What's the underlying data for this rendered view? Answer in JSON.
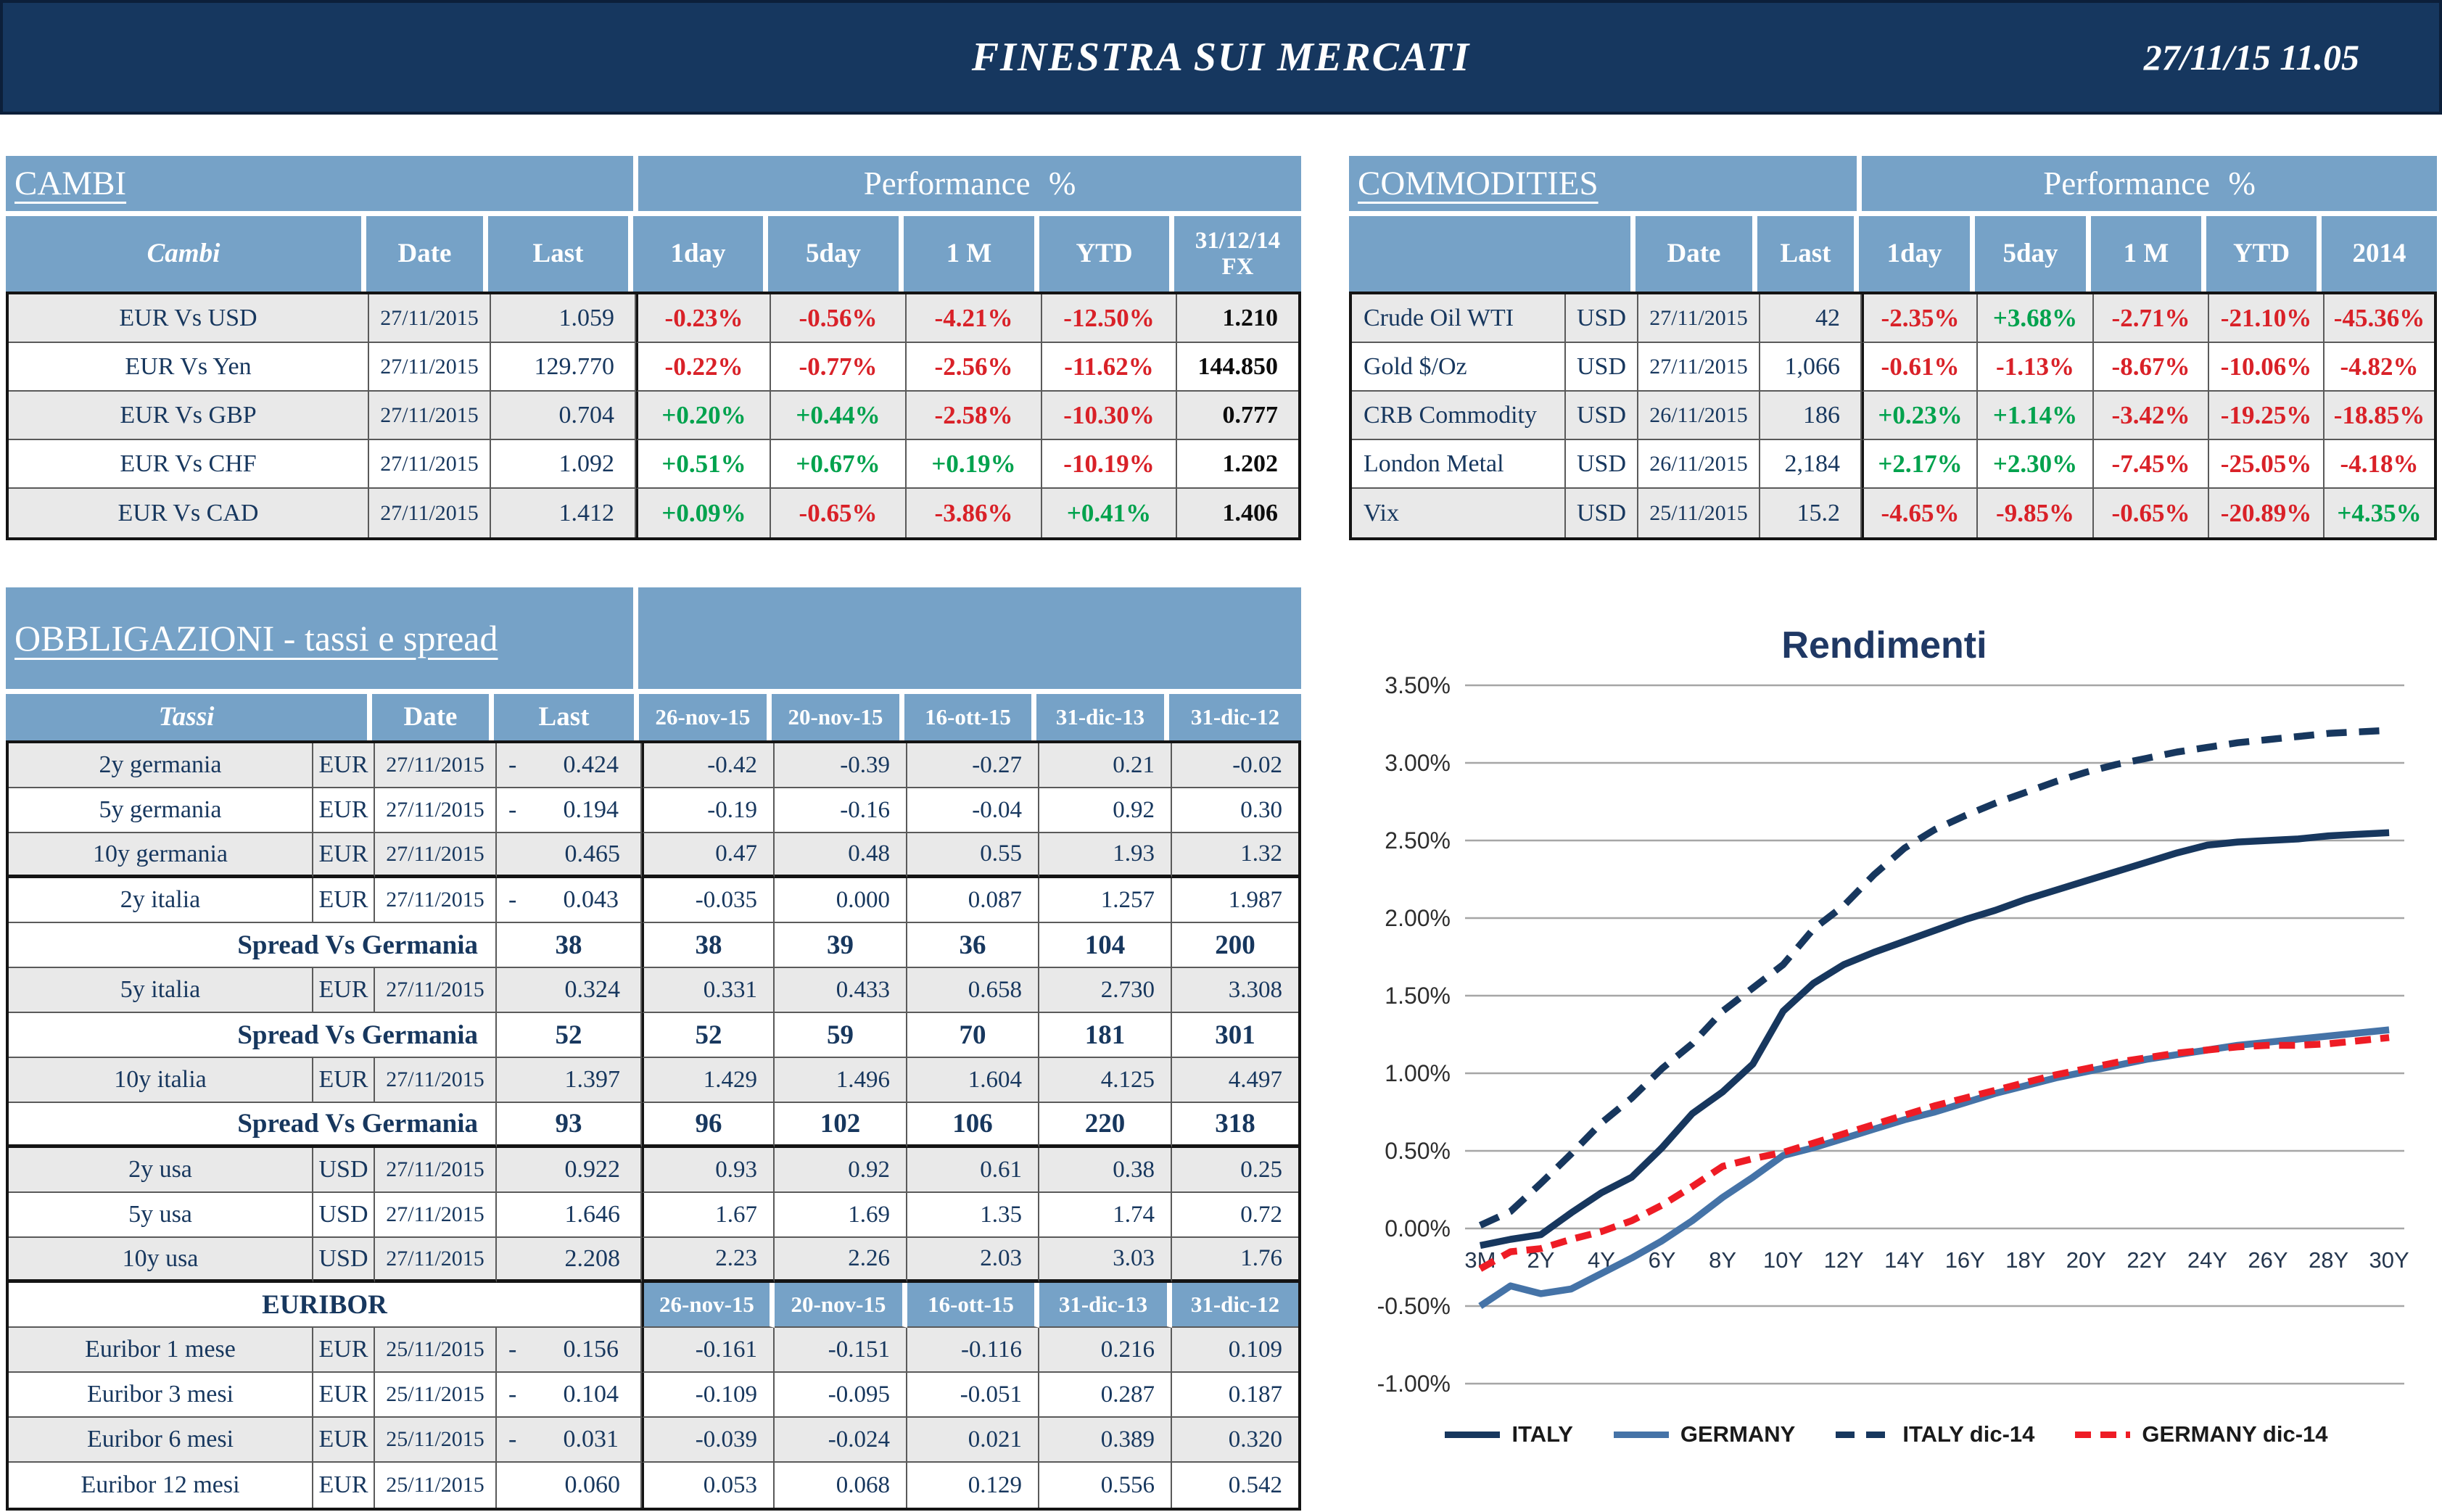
{
  "page": {
    "title": "FINESTRA SUI MERCATI",
    "datetime": "27/11/15 11.05"
  },
  "colors": {
    "topbar_navy": "#16375f",
    "header_blue": "#76a2c7",
    "row_gray": "#e9e9e9",
    "negative_red": "#d92128",
    "positive_green": "#00a24d",
    "italy_navy": "#17375e",
    "germany_blue": "#4573a7",
    "germany14_red": "#ee1c25",
    "grid_gray": "#a6a6a6"
  },
  "cambi": {
    "section_title": "CAMBI",
    "perf_title": "Performance %",
    "headers": [
      "Cambi",
      "Date",
      "Last",
      "1day",
      "5day",
      "1 M",
      "YTD",
      "31/12/14 FX"
    ],
    "rows": [
      {
        "name": "EUR Vs USD",
        "date": "27/11/2015",
        "last": "1.059",
        "perf": [
          "-0.23%",
          "-0.56%",
          "-4.21%",
          "-12.50%"
        ],
        "fx": "1.210"
      },
      {
        "name": "EUR Vs Yen",
        "date": "27/11/2015",
        "last": "129.770",
        "perf": [
          "-0.22%",
          "-0.77%",
          "-2.56%",
          "-11.62%"
        ],
        "fx": "144.850"
      },
      {
        "name": "EUR Vs GBP",
        "date": "27/11/2015",
        "last": "0.704",
        "perf": [
          "+0.20%",
          "+0.44%",
          "-2.58%",
          "-10.30%"
        ],
        "fx": "0.777"
      },
      {
        "name": "EUR Vs CHF",
        "date": "27/11/2015",
        "last": "1.092",
        "perf": [
          "+0.51%",
          "+0.67%",
          "+0.19%",
          "-10.19%"
        ],
        "fx": "1.202"
      },
      {
        "name": "EUR Vs CAD",
        "date": "27/11/2015",
        "last": "1.412",
        "perf": [
          "+0.09%",
          "-0.65%",
          "-3.86%",
          "+0.41%"
        ],
        "fx": "1.406"
      }
    ]
  },
  "commodities": {
    "section_title": "COMMODITIES",
    "perf_title": "Performance %",
    "headers": [
      "",
      "Date",
      "Last",
      "1day",
      "5day",
      "1 M",
      "YTD",
      "2014"
    ],
    "rows": [
      {
        "name": "Crude Oil WTI",
        "curr": "USD",
        "date": "27/11/2015",
        "last": "42",
        "perf": [
          "-2.35%",
          "+3.68%",
          "-2.71%",
          "-21.10%",
          "-45.36%"
        ]
      },
      {
        "name": "Gold $/Oz",
        "curr": "USD",
        "date": "27/11/2015",
        "last": "1,066",
        "perf": [
          "-0.61%",
          "-1.13%",
          "-8.67%",
          "-10.06%",
          "-4.82%"
        ]
      },
      {
        "name": "CRB Commodity",
        "curr": "USD",
        "date": "26/11/2015",
        "last": "186",
        "perf": [
          "+0.23%",
          "+1.14%",
          "-3.42%",
          "-19.25%",
          "-18.85%"
        ]
      },
      {
        "name": "London Metal",
        "curr": "USD",
        "date": "26/11/2015",
        "last": "2,184",
        "perf": [
          "+2.17%",
          "+2.30%",
          "-7.45%",
          "-25.05%",
          "-4.18%"
        ]
      },
      {
        "name": "Vix",
        "curr": "USD",
        "date": "25/11/2015",
        "last": "15.2",
        "perf": [
          "-4.65%",
          "-9.85%",
          "-0.65%",
          "-20.89%",
          "+4.35%"
        ]
      }
    ]
  },
  "obbligazioni": {
    "section_title": "OBBLIGAZIONI - tassi e spread",
    "headers": [
      "Tassi",
      "Date",
      "Last"
    ],
    "date_headers": [
      "26-nov-15",
      "20-nov-15",
      "16-ott-15",
      "31-dic-13",
      "31-dic-12"
    ],
    "euribor_label": "EURIBOR",
    "rows": [
      {
        "type": "rate",
        "name": "2y germania",
        "curr": "EUR",
        "date": "27/11/2015",
        "neg": true,
        "last": "0.424",
        "hist": [
          "-0.42",
          "-0.39",
          "-0.27",
          "0.21",
          "-0.02"
        ],
        "shade": true
      },
      {
        "type": "rate",
        "name": "5y germania",
        "curr": "EUR",
        "date": "27/11/2015",
        "neg": true,
        "last": "0.194",
        "hist": [
          "-0.19",
          "-0.16",
          "-0.04",
          "0.92",
          "0.30"
        ]
      },
      {
        "type": "rate",
        "name": "10y germania",
        "curr": "EUR",
        "date": "27/11/2015",
        "neg": false,
        "last": "0.465",
        "hist": [
          "0.47",
          "0.48",
          "0.55",
          "1.93",
          "1.32"
        ],
        "shade": true,
        "thick": true
      },
      {
        "type": "rate",
        "name": "2y italia",
        "curr": "EUR",
        "date": "27/11/2015",
        "neg": true,
        "last": "0.043",
        "hist": [
          "-0.035",
          "0.000",
          "0.087",
          "1.257",
          "1.987"
        ]
      },
      {
        "type": "spread",
        "label": "Spread Vs Germania",
        "last": "38",
        "hist": [
          "38",
          "39",
          "36",
          "104",
          "200"
        ]
      },
      {
        "type": "rate",
        "name": "5y italia",
        "curr": "EUR",
        "date": "27/11/2015",
        "neg": false,
        "last": "0.324",
        "hist": [
          "0.331",
          "0.433",
          "0.658",
          "2.730",
          "3.308"
        ],
        "shade": true
      },
      {
        "type": "spread",
        "label": "Spread Vs Germania",
        "last": "52",
        "hist": [
          "52",
          "59",
          "70",
          "181",
          "301"
        ]
      },
      {
        "type": "rate",
        "name": "10y italia",
        "curr": "EUR",
        "date": "27/11/2015",
        "neg": false,
        "last": "1.397",
        "hist": [
          "1.429",
          "1.496",
          "1.604",
          "4.125",
          "4.497"
        ],
        "shade": true
      },
      {
        "type": "spread",
        "label": "Spread Vs Germania",
        "last": "93",
        "hist": [
          "96",
          "102",
          "106",
          "220",
          "318"
        ],
        "thick": true
      },
      {
        "type": "rate",
        "name": "2y usa",
        "curr": "USD",
        "date": "27/11/2015",
        "neg": false,
        "last": "0.922",
        "hist": [
          "0.93",
          "0.92",
          "0.61",
          "0.38",
          "0.25"
        ],
        "shade": true
      },
      {
        "type": "rate",
        "name": "5y usa",
        "curr": "USD",
        "date": "27/11/2015",
        "neg": false,
        "last": "1.646",
        "hist": [
          "1.67",
          "1.69",
          "1.35",
          "1.74",
          "0.72"
        ]
      },
      {
        "type": "rate",
        "name": "10y usa",
        "curr": "USD",
        "date": "27/11/2015",
        "neg": false,
        "last": "2.208",
        "hist": [
          "2.23",
          "2.26",
          "2.03",
          "3.03",
          "1.76"
        ],
        "shade": true,
        "thick": true
      },
      {
        "type": "euribor_header"
      },
      {
        "type": "rate",
        "name": "Euribor 1 mese",
        "curr": "EUR",
        "date": "25/11/2015",
        "neg": true,
        "last": "0.156",
        "hist": [
          "-0.161",
          "-0.151",
          "-0.116",
          "0.216",
          "0.109"
        ],
        "shade": true
      },
      {
        "type": "rate",
        "name": "Euribor 3 mesi",
        "curr": "EUR",
        "date": "25/11/2015",
        "neg": true,
        "last": "0.104",
        "hist": [
          "-0.109",
          "-0.095",
          "-0.051",
          "0.287",
          "0.187"
        ]
      },
      {
        "type": "rate",
        "name": "Euribor 6 mesi",
        "curr": "EUR",
        "date": "25/11/2015",
        "neg": true,
        "last": "0.031",
        "hist": [
          "-0.039",
          "-0.024",
          "0.021",
          "0.389",
          "0.320"
        ],
        "shade": true
      },
      {
        "type": "rate",
        "name": "Euribor 12 mesi",
        "curr": "EUR",
        "date": "25/11/2015",
        "neg": false,
        "last": "0.060",
        "hist": [
          "0.053",
          "0.068",
          "0.129",
          "0.556",
          "0.542"
        ]
      }
    ]
  },
  "chart_data": {
    "type": "line",
    "title": "Rendimenti",
    "xlabel": "",
    "ylabel": "",
    "ylim": [
      -1.0,
      3.5
    ],
    "grid": "horizontal",
    "legend_position": "bottom",
    "y_ticks": [
      "3.50%",
      "3.00%",
      "2.50%",
      "2.00%",
      "1.50%",
      "1.00%",
      "0.50%",
      "0.00%",
      "-0.50%",
      "-1.00%"
    ],
    "x_tick_labels": [
      "3M",
      "2Y",
      "4Y",
      "6Y",
      "8Y",
      "10Y",
      "12Y",
      "14Y",
      "16Y",
      "18Y",
      "20Y",
      "22Y",
      "24Y",
      "26Y",
      "28Y",
      "30Y"
    ],
    "categories": [
      "3M",
      "1Y",
      "2Y",
      "3Y",
      "4Y",
      "5Y",
      "6Y",
      "7Y",
      "8Y",
      "9Y",
      "10Y",
      "11Y",
      "12Y",
      "13Y",
      "14Y",
      "15Y",
      "16Y",
      "17Y",
      "18Y",
      "19Y",
      "20Y",
      "21Y",
      "22Y",
      "23Y",
      "24Y",
      "25Y",
      "26Y",
      "27Y",
      "28Y",
      "29Y",
      "30Y"
    ],
    "series": [
      {
        "name": "ITALY",
        "color": "#17375e",
        "dash": "solid",
        "values": [
          -0.11,
          -0.07,
          -0.04,
          0.1,
          0.23,
          0.33,
          0.52,
          0.74,
          0.88,
          1.06,
          1.4,
          1.58,
          1.7,
          1.78,
          1.85,
          1.92,
          1.99,
          2.05,
          2.12,
          2.18,
          2.24,
          2.3,
          2.36,
          2.42,
          2.47,
          2.49,
          2.5,
          2.51,
          2.53,
          2.54,
          2.55
        ]
      },
      {
        "name": "GERMANY",
        "color": "#4573a7",
        "dash": "solid",
        "values": [
          -0.5,
          -0.37,
          -0.42,
          -0.39,
          -0.29,
          -0.19,
          -0.08,
          0.05,
          0.2,
          0.33,
          0.47,
          0.52,
          0.58,
          0.64,
          0.7,
          0.75,
          0.81,
          0.87,
          0.92,
          0.97,
          1.01,
          1.05,
          1.09,
          1.12,
          1.15,
          1.18,
          1.2,
          1.22,
          1.24,
          1.26,
          1.28
        ]
      },
      {
        "name": "ITALY dic-14",
        "color": "#17375e",
        "dash": "dashed",
        "values": [
          0.02,
          0.11,
          0.29,
          0.48,
          0.68,
          0.84,
          1.03,
          1.19,
          1.4,
          1.55,
          1.7,
          1.93,
          2.08,
          2.28,
          2.45,
          2.57,
          2.66,
          2.74,
          2.81,
          2.88,
          2.94,
          2.99,
          3.03,
          3.07,
          3.1,
          3.13,
          3.15,
          3.17,
          3.19,
          3.2,
          3.21
        ]
      },
      {
        "name": "GERMANY dic-14",
        "color": "#ee1c25",
        "dash": "dashed",
        "values": [
          -0.26,
          -0.15,
          -0.13,
          -0.07,
          -0.02,
          0.05,
          0.15,
          0.27,
          0.4,
          0.45,
          0.49,
          0.55,
          0.61,
          0.67,
          0.73,
          0.79,
          0.84,
          0.89,
          0.94,
          0.99,
          1.03,
          1.07,
          1.1,
          1.13,
          1.15,
          1.17,
          1.18,
          1.18,
          1.19,
          1.21,
          1.23
        ]
      }
    ]
  }
}
